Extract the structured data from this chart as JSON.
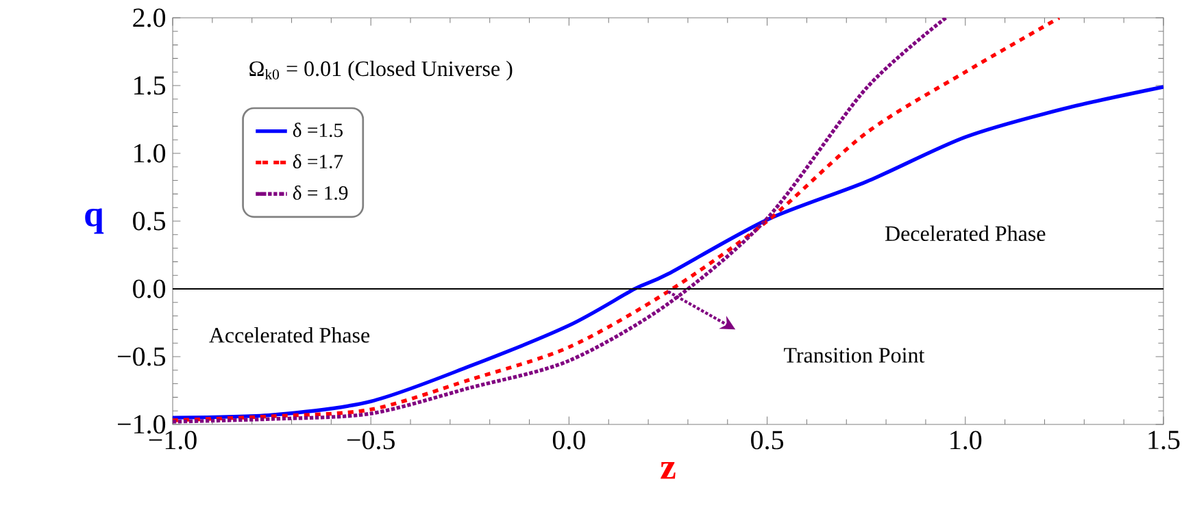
{
  "chart_data": {
    "type": "line",
    "xlabel": "z",
    "ylabel": "q",
    "xlim": [
      -1.0,
      1.5
    ],
    "ylim": [
      -1.0,
      2.0
    ],
    "xticks": [
      {
        "value": -1.0,
        "label": "−1.0"
      },
      {
        "value": -0.5,
        "label": "−0.5"
      },
      {
        "value": 0,
        "label": "0.0"
      },
      {
        "value": 0.5,
        "label": "0.5"
      },
      {
        "value": 1.0,
        "label": "1.0"
      },
      {
        "value": 1.5,
        "label": "1.5"
      }
    ],
    "yticks": [
      {
        "value": -1.0,
        "label": "−1.0"
      },
      {
        "value": -0.5,
        "label": "−0.5"
      },
      {
        "value": 0,
        "label": "0.0"
      },
      {
        "value": 0.5,
        "label": "0.5"
      },
      {
        "value": 1.0,
        "label": "1.0"
      },
      {
        "value": 1.5,
        "label": "1.5"
      },
      {
        "value": 2.0,
        "label": "2.0"
      }
    ],
    "grid": false,
    "legend": "top left",
    "series": [
      {
        "name": "δ =1.5",
        "color": "#0000ff",
        "line_style": "solid",
        "x": [
          -1.0,
          -0.75,
          -0.5,
          -0.25,
          0.0,
          0.166,
          0.25,
          0.5,
          0.75,
          1.0,
          1.25,
          1.5
        ],
        "values": [
          -0.95,
          -0.93,
          -0.83,
          -0.57,
          -0.27,
          0.0,
          0.11,
          0.51,
          0.79,
          1.12,
          1.33,
          1.49
        ]
      },
      {
        "name": "δ =1.7",
        "color": "#ff0000",
        "line_style": "dashed",
        "x": [
          -1.0,
          -0.75,
          -0.5,
          -0.25,
          0.0,
          0.25,
          0.5,
          0.75,
          1.0,
          1.237
        ],
        "values": [
          -0.97,
          -0.94,
          -0.89,
          -0.67,
          -0.43,
          -0.02,
          0.5,
          1.15,
          1.6,
          2.0
        ]
      },
      {
        "name": "δ = 1.9",
        "color": "#800080",
        "line_style": "dotted",
        "x": [
          -1.0,
          -0.75,
          -0.5,
          -0.25,
          0.0,
          0.25,
          0.5,
          0.75,
          0.951
        ],
        "values": [
          -0.98,
          -0.96,
          -0.92,
          -0.73,
          -0.53,
          -0.11,
          0.52,
          1.48,
          2.0
        ]
      }
    ],
    "ref_lines": [
      {
        "axis": "y",
        "value": 0,
        "color": "#000000"
      }
    ],
    "annotations": [
      "Ω$_{k0}$ = 0.01  (Closed Universe )",
      "Accelerated Phase",
      "Decelerated Phase",
      "Transition Point"
    ]
  }
}
